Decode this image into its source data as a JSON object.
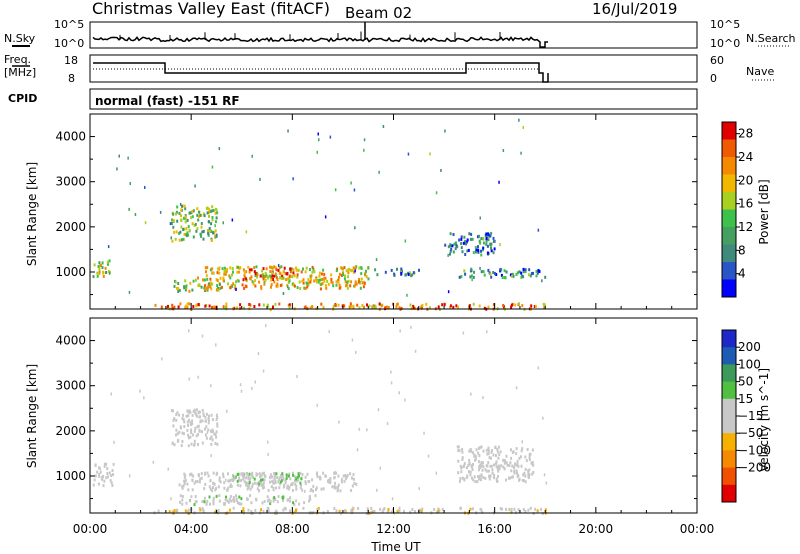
{
  "header": {
    "radar": "Christmas Valley East (fitACF)",
    "beam": "Beam 02",
    "date": "16/Jul/2019"
  },
  "strip_panels": {
    "nsky": {
      "left_label": "N.Sky",
      "left_ticks": [
        "10^5",
        "10^0"
      ],
      "right_label": "N.Search",
      "right_ticks": [
        "10^5",
        "10^0"
      ]
    },
    "freq": {
      "left_label_1": "Freq.",
      "left_label_2": "[MHz]",
      "left_ticks": [
        "18",
        "8"
      ],
      "right_label": "Nave",
      "right_ticks": [
        "60",
        "0"
      ]
    },
    "cpid": {
      "label": "CPID",
      "text": "normal (fast) -151 RF"
    }
  },
  "chart_data": [
    {
      "type": "heatmap",
      "name": "power-panel",
      "ylabel": "Slant Range [km]",
      "yticks": [
        1000,
        2000,
        3000,
        4000
      ],
      "ylim": [
        180,
        4500
      ],
      "xlim": [
        0,
        24
      ],
      "colorbar": {
        "label": "Power [dB]",
        "ticks": [
          "4",
          "8",
          "12",
          "16",
          "20",
          "24",
          "28"
        ],
        "range": [
          0,
          30
        ],
        "colors": [
          "#0000ff",
          "#2a55c8",
          "#3f8a7a",
          "#45a060",
          "#3cc14a",
          "#a8d020",
          "#f0b800",
          "#f58a00",
          "#f05a00",
          "#e00000"
        ]
      },
      "echo_regions": [
        {
          "t": [
            0.1,
            0.8
          ],
          "r": [
            900,
            1300
          ],
          "level": 0.5
        },
        {
          "t": [
            3.3,
            5.2
          ],
          "r": [
            600,
            900
          ],
          "level": 0.5
        },
        {
          "t": [
            4.5,
            11.0
          ],
          "r": [
            650,
            1150
          ],
          "level": 0.65
        },
        {
          "t": [
            6.0,
            8.2
          ],
          "r": [
            850,
            1150
          ],
          "level": 0.8
        },
        {
          "t": [
            11.2,
            13.0
          ],
          "r": [
            950,
            1100
          ],
          "level": 0.3
        },
        {
          "t": [
            3.2,
            5.0
          ],
          "r": [
            1700,
            2500
          ],
          "level": 0.45
        },
        {
          "t": [
            14.0,
            16.0
          ],
          "r": [
            1400,
            1900
          ],
          "level": 0.2
        },
        {
          "t": [
            14.5,
            18.0
          ],
          "r": [
            900,
            1100
          ],
          "level": 0.3
        },
        {
          "t": [
            2.5,
            18.0
          ],
          "r": [
            200,
            330
          ],
          "level": 0.75
        }
      ]
    },
    {
      "type": "heatmap",
      "name": "velocity-panel",
      "ylabel": "Slant Range [km]",
      "yticks": [
        1000,
        2000,
        3000,
        4000
      ],
      "ylim": [
        180,
        4500
      ],
      "xlim": [
        0,
        24
      ],
      "xlabel": "Time UT",
      "xticks": [
        "00:00",
        "04:00",
        "08:00",
        "12:00",
        "16:00",
        "20:00",
        "00:00"
      ],
      "colorbar": {
        "label": "Velocity [m s^-1]",
        "ticks": [
          "200",
          "100",
          "50",
          "15",
          "-15",
          "-50",
          "-100",
          "-200"
        ],
        "range": [
          -250,
          250
        ],
        "colors": [
          "#e00000",
          "#f05000",
          "#f58a00",
          "#f5b000",
          "#c8c8c8",
          "#c8c8c8",
          "#50c040",
          "#3c9a5a",
          "#1e5cb4",
          "#1e28c8"
        ]
      },
      "echo_regions": [
        {
          "t": [
            0.1,
            0.9
          ],
          "r": [
            800,
            1300
          ],
          "vel": 0
        },
        {
          "t": [
            3.5,
            10.5
          ],
          "r": [
            700,
            1100
          ],
          "vel": 5
        },
        {
          "t": [
            5.5,
            8.5
          ],
          "r": [
            850,
            1100
          ],
          "vel": 40
        },
        {
          "t": [
            3.5,
            9.0
          ],
          "r": [
            400,
            600
          ],
          "vel": 30
        },
        {
          "t": [
            2.5,
            18.0
          ],
          "r": [
            200,
            320
          ],
          "vel": -40
        },
        {
          "t": [
            3.2,
            5.0
          ],
          "r": [
            1700,
            2500
          ],
          "vel": 0
        },
        {
          "t": [
            14.5,
            17.5
          ],
          "r": [
            900,
            1700
          ],
          "vel": 0
        }
      ]
    }
  ]
}
